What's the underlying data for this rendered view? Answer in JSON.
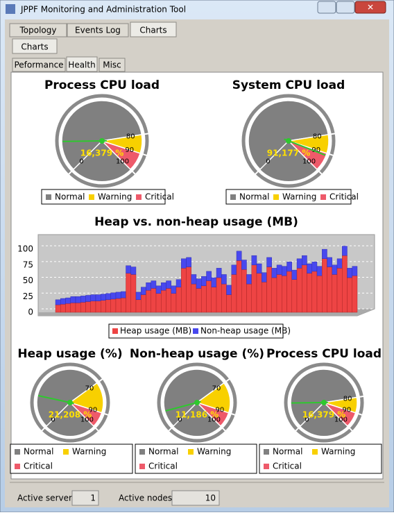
{
  "window_title": "JPPF Monitoring and Administration Tool",
  "tabs": [
    "Topology",
    "Events Log",
    "Charts"
  ],
  "subtabs": [
    "Charts"
  ],
  "health_tabs": [
    "Peformance",
    "Health",
    "Misc"
  ],
  "status": {
    "servers_label": "Active servers",
    "servers": 1,
    "nodes_label": "Active nodes",
    "nodes": 10
  },
  "chart_data": [
    {
      "type": "gauge",
      "title": "Process CPU load",
      "values": [
        16.379
      ],
      "value_labels": [
        "16,379 %"
      ],
      "ylim": [
        0,
        100
      ],
      "yticks": [
        0,
        80,
        90,
        100
      ],
      "series": [
        {
          "name": "Normal",
          "color": "#808080"
        },
        {
          "name": "Warning",
          "color": "#f8d000"
        },
        {
          "name": "Critical",
          "color": "#ee5a6a"
        }
      ]
    },
    {
      "type": "gauge",
      "title": "System CPU load",
      "values": [
        91.177
      ],
      "value_labels": [
        "91,177 %"
      ],
      "ylim": [
        0,
        100
      ],
      "yticks": [
        0,
        80,
        90,
        100
      ],
      "series": [
        {
          "name": "Normal",
          "color": "#808080"
        },
        {
          "name": "Warning",
          "color": "#f8d000"
        },
        {
          "name": "Critical",
          "color": "#ee5a6a"
        }
      ]
    },
    {
      "type": "bar",
      "title": "Heap vs. non-heap usage (MB)",
      "stacked": true,
      "ylim": [
        0,
        110
      ],
      "yticks": [
        0,
        25,
        50,
        75,
        100
      ],
      "grid": true,
      "series": [
        {
          "name": "Heap usage (MB)",
          "color": "#ee4444",
          "values": [
            12,
            13,
            14,
            15,
            15,
            16,
            17,
            18,
            18,
            19,
            20,
            21,
            22,
            23,
            62,
            60,
            20,
            28,
            35,
            38,
            30,
            35,
            38,
            30,
            40,
            70,
            72,
            45,
            38,
            42,
            50,
            40,
            55,
            45,
            28,
            60,
            82,
            68,
            45,
            75,
            62,
            48,
            72,
            55,
            60,
            58,
            65,
            52,
            70,
            75,
            62,
            65,
            58,
            85,
            72,
            60,
            70,
            90,
            55,
            58
          ]
        },
        {
          "name": "Non-heap usage (MB)",
          "color": "#4848ee",
          "values": [
            8,
            9,
            9,
            10,
            10,
            10,
            10,
            10,
            10,
            10,
            10,
            10,
            10,
            10,
            12,
            12,
            12,
            12,
            12,
            12,
            12,
            12,
            12,
            12,
            12,
            15,
            15,
            15,
            15,
            15,
            15,
            15,
            15,
            15,
            15,
            15,
            15,
            15,
            15,
            15,
            15,
            15,
            15,
            15,
            15,
            15,
            15,
            15,
            15,
            15,
            15,
            15,
            15,
            15,
            15,
            15,
            15,
            15,
            15,
            15
          ]
        }
      ]
    },
    {
      "type": "gauge",
      "title": "Heap usage (%)",
      "values": [
        21.208
      ],
      "value_labels": [
        "21,208 %"
      ],
      "ylim": [
        0,
        100
      ],
      "yticks": [
        0,
        70,
        90,
        100
      ],
      "series": [
        {
          "name": "Normal",
          "color": "#808080"
        },
        {
          "name": "Warning",
          "color": "#f8d000"
        },
        {
          "name": "Critical",
          "color": "#ee5a6a"
        }
      ]
    },
    {
      "type": "gauge",
      "title": "Non-heap usage (%)",
      "values": [
        11.186
      ],
      "value_labels": [
        "11,186 %"
      ],
      "ylim": [
        0,
        100
      ],
      "yticks": [
        0,
        70,
        90,
        100
      ],
      "series": [
        {
          "name": "Normal",
          "color": "#808080"
        },
        {
          "name": "Warning",
          "color": "#f8d000"
        },
        {
          "name": "Critical",
          "color": "#ee5a6a"
        }
      ]
    },
    {
      "type": "gauge",
      "title": "Process CPU load",
      "values": [
        16.379
      ],
      "value_labels": [
        "16,379 %"
      ],
      "ylim": [
        0,
        100
      ],
      "yticks": [
        0,
        80,
        90,
        100
      ],
      "series": [
        {
          "name": "Normal",
          "color": "#808080"
        },
        {
          "name": "Warning",
          "color": "#f8d000"
        },
        {
          "name": "Critical",
          "color": "#ee5a6a"
        }
      ]
    }
  ]
}
